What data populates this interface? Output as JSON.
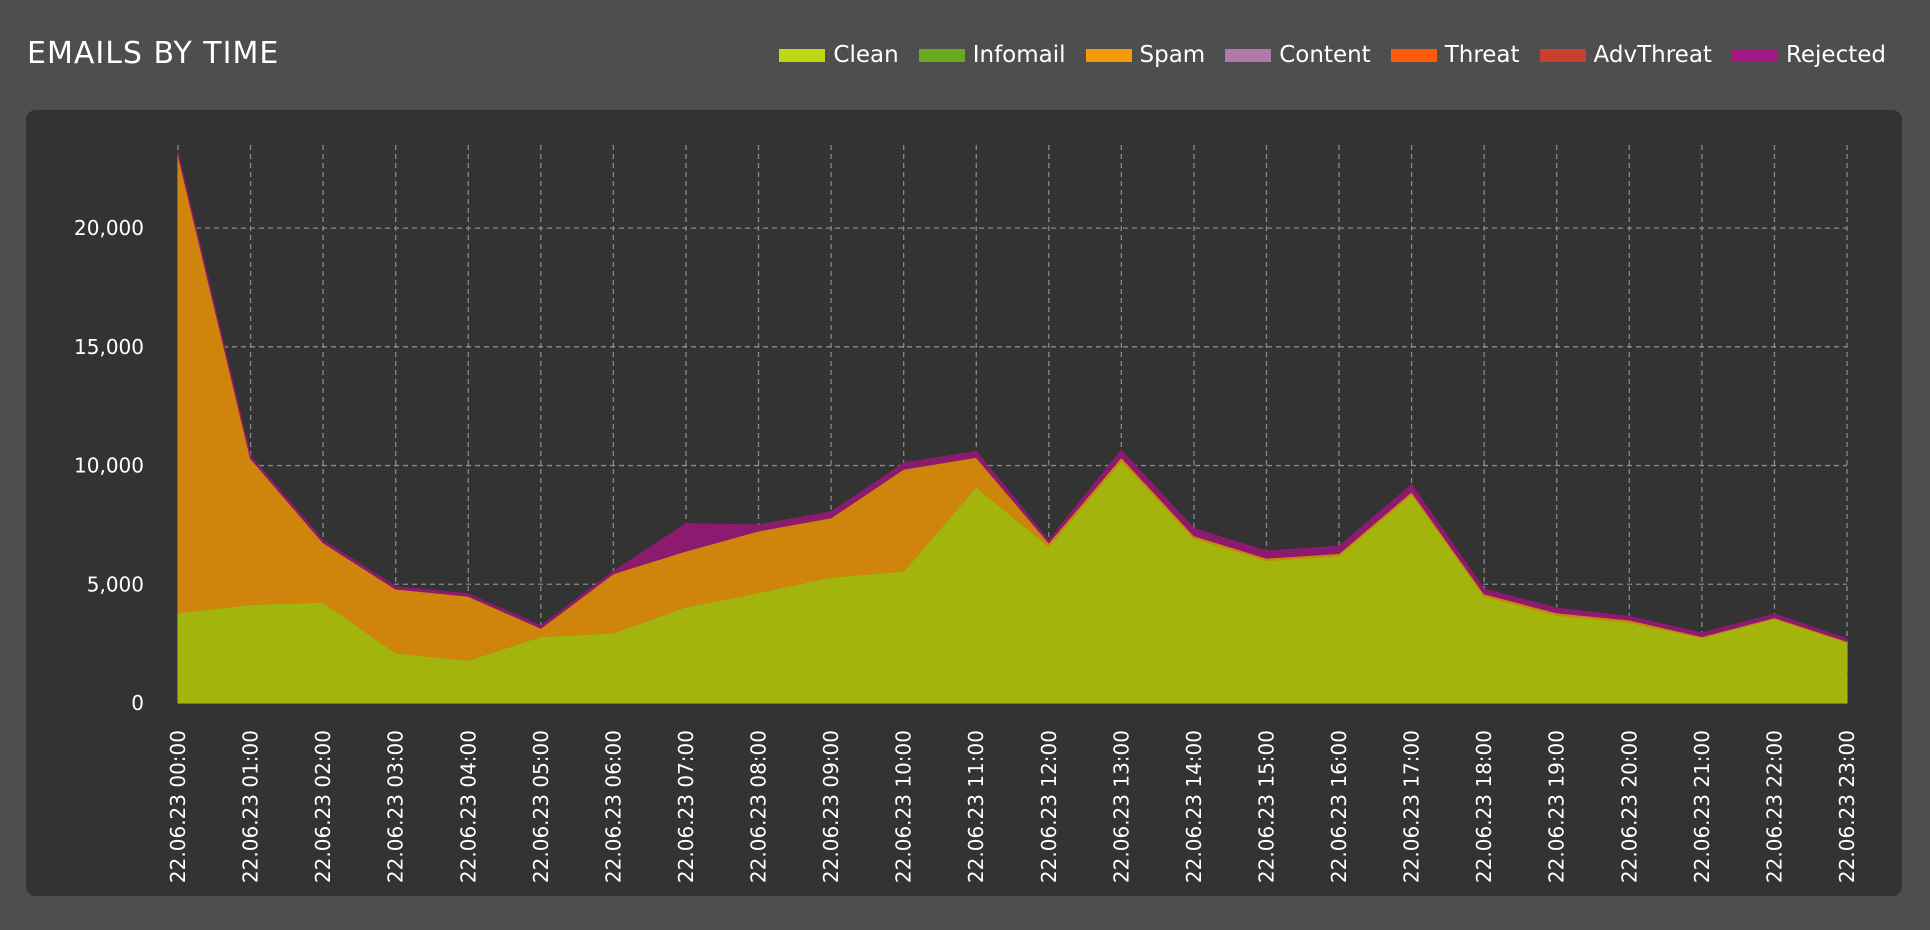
{
  "header": {
    "title": "EMAILS BY TIME"
  },
  "chart_data": {
    "type": "area",
    "stacked": true,
    "title": "EMAILS BY TIME",
    "xlabel": "",
    "ylabel": "",
    "ylim": [
      0,
      23500
    ],
    "yticks": [
      0,
      5000,
      10000,
      15000,
      20000
    ],
    "ytick_labels": [
      "0",
      "5,000",
      "10,000",
      "15,000",
      "20,000"
    ],
    "grid": true,
    "legend_position": "top-right",
    "categories": [
      "22.06.23 00:00",
      "22.06.23 01:00",
      "22.06.23 02:00",
      "22.06.23 03:00",
      "22.06.23 04:00",
      "22.06.23 05:00",
      "22.06.23 06:00",
      "22.06.23 07:00",
      "22.06.23 08:00",
      "22.06.23 09:00",
      "22.06.23 10:00",
      "22.06.23 11:00",
      "22.06.23 12:00",
      "22.06.23 13:00",
      "22.06.23 14:00",
      "22.06.23 15:00",
      "22.06.23 16:00",
      "22.06.23 17:00",
      "22.06.23 18:00",
      "22.06.23 19:00",
      "22.06.23 20:00",
      "22.06.23 21:00",
      "22.06.23 22:00",
      "22.06.23 23:00"
    ],
    "series": [
      {
        "name": "Clean",
        "color": "#a3b50c",
        "legend_color": "#c0d810",
        "values": [
          3800,
          4150,
          4250,
          2100,
          1800,
          2800,
          2950,
          4050,
          4650,
          5300,
          5550,
          9100,
          6600,
          10200,
          6950,
          6000,
          6200,
          8800,
          4500,
          3700,
          3400,
          2750,
          3550,
          2550
        ]
      },
      {
        "name": "Infomail",
        "color": "#5f9a1d",
        "legend_color": "#6aa81e",
        "values": [
          0,
          0,
          0,
          0,
          0,
          0,
          0,
          0,
          0,
          0,
          0,
          0,
          0,
          0,
          0,
          0,
          0,
          0,
          0,
          0,
          0,
          0,
          0,
          0
        ]
      },
      {
        "name": "Spam",
        "color": "#cf850b",
        "legend_color": "#f29a08",
        "values": [
          19300,
          6150,
          2500,
          2700,
          2700,
          350,
          2500,
          2350,
          2600,
          2500,
          4300,
          1250,
          150,
          150,
          100,
          100,
          100,
          100,
          100,
          100,
          100,
          50,
          50,
          50
        ]
      },
      {
        "name": "Content",
        "color": "#a8669e",
        "legend_color": "#b07aa8",
        "values": [
          0,
          0,
          0,
          0,
          0,
          0,
          0,
          0,
          0,
          0,
          0,
          0,
          0,
          0,
          0,
          0,
          0,
          0,
          0,
          0,
          0,
          0,
          0,
          0
        ]
      },
      {
        "name": "Threat",
        "color": "#ee4c0e",
        "legend_color": "#ff5a0a",
        "values": [
          0,
          0,
          0,
          0,
          0,
          0,
          0,
          0,
          0,
          0,
          0,
          0,
          0,
          0,
          0,
          0,
          0,
          0,
          0,
          0,
          0,
          0,
          0,
          0
        ]
      },
      {
        "name": "AdvThreat",
        "color": "#b83a2a",
        "legend_color": "#c94030",
        "values": [
          0,
          0,
          0,
          0,
          0,
          0,
          0,
          0,
          0,
          0,
          0,
          0,
          0,
          0,
          0,
          0,
          0,
          0,
          0,
          0,
          0,
          0,
          0,
          0
        ]
      },
      {
        "name": "Rejected",
        "color": "#8c1a6e",
        "legend_color": "#a31a84",
        "values": [
          100,
          100,
          100,
          100,
          100,
          100,
          100,
          1150,
          250,
          250,
          250,
          250,
          100,
          300,
          300,
          300,
          300,
          300,
          200,
          200,
          150,
          150,
          150,
          100
        ]
      }
    ]
  }
}
